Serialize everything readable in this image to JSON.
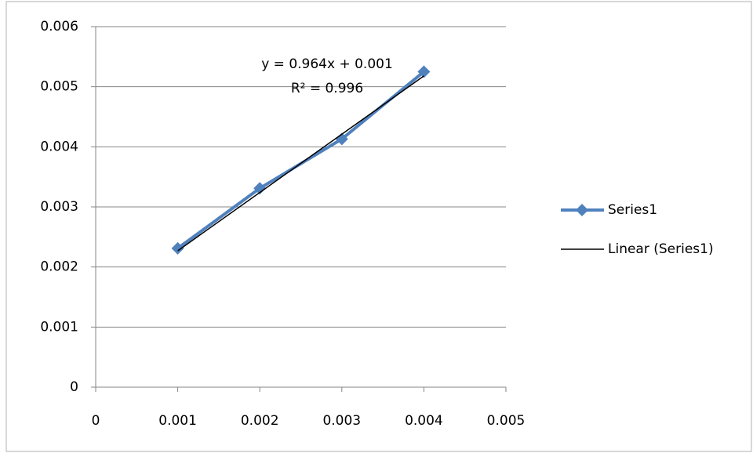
{
  "chart_data": {
    "type": "scatter",
    "x": [
      0.001,
      0.002,
      0.003,
      0.004
    ],
    "series": [
      {
        "name": "Series1",
        "color": "#4f81bd",
        "values": [
          0.00231,
          0.00331,
          0.00413,
          0.00525
        ],
        "marker": "diamond"
      },
      {
        "name": "Linear (Series1)",
        "color": "#000000",
        "x": [
          0.001,
          0.004
        ],
        "values": [
          0.00227,
          0.00518
        ]
      }
    ],
    "annotations": [
      "y = 0.964x + 0.001",
      "R² = 0.996"
    ],
    "xlim": [
      0,
      0.005
    ],
    "xticks": [
      0,
      0.001,
      0.002,
      0.003,
      0.004,
      0.005
    ],
    "ylim": [
      0,
      0.006
    ],
    "yticks": [
      0,
      0.001,
      0.002,
      0.003,
      0.004,
      0.005,
      0.006
    ],
    "grid": true,
    "legend": "right"
  }
}
